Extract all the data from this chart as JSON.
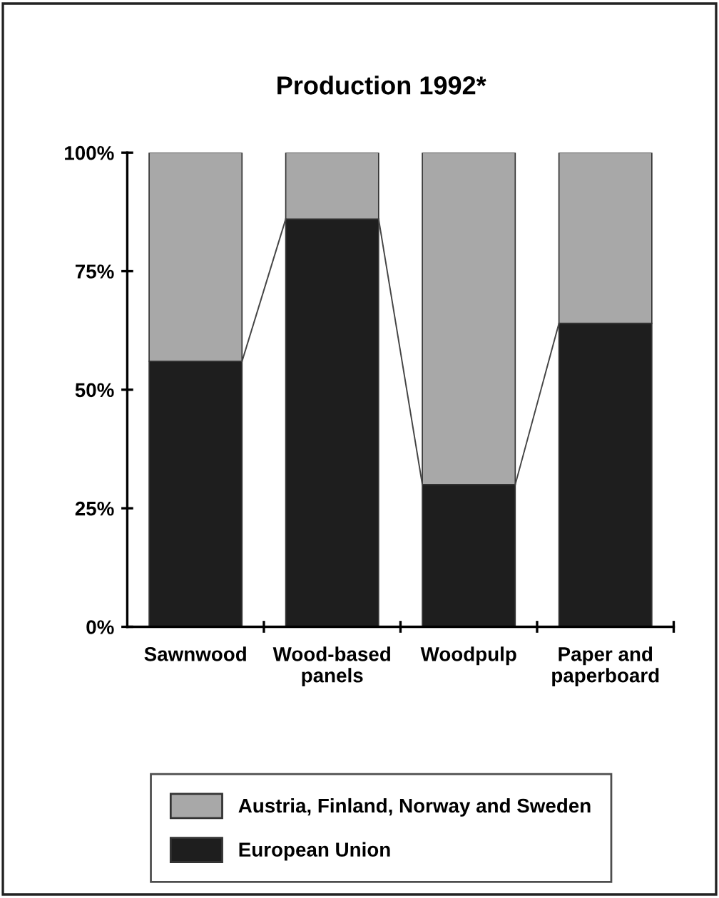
{
  "chart_data": {
    "type": "bar",
    "title": "Production 1992*",
    "categories": [
      "Sawnwood",
      "Wood-based\npanels",
      "Woodpulp",
      "Paper and\npaperboard"
    ],
    "stacked": true,
    "series": [
      {
        "name": "European Union",
        "color": "#1e1e1e",
        "values": [
          56,
          86,
          30,
          64
        ]
      },
      {
        "name": "Austria, Finland, Norway and Sweden",
        "color": "#a8a8a8",
        "values": [
          44,
          14,
          70,
          36
        ]
      }
    ],
    "ylim": [
      0,
      100
    ],
    "yticks": [
      {
        "value": 0,
        "label": "0%"
      },
      {
        "value": 25,
        "label": "25%"
      },
      {
        "value": 50,
        "label": "50%"
      },
      {
        "value": 75,
        "label": "75%"
      },
      {
        "value": 100,
        "label": "100%"
      }
    ],
    "grid": false,
    "legend": "bottom"
  }
}
